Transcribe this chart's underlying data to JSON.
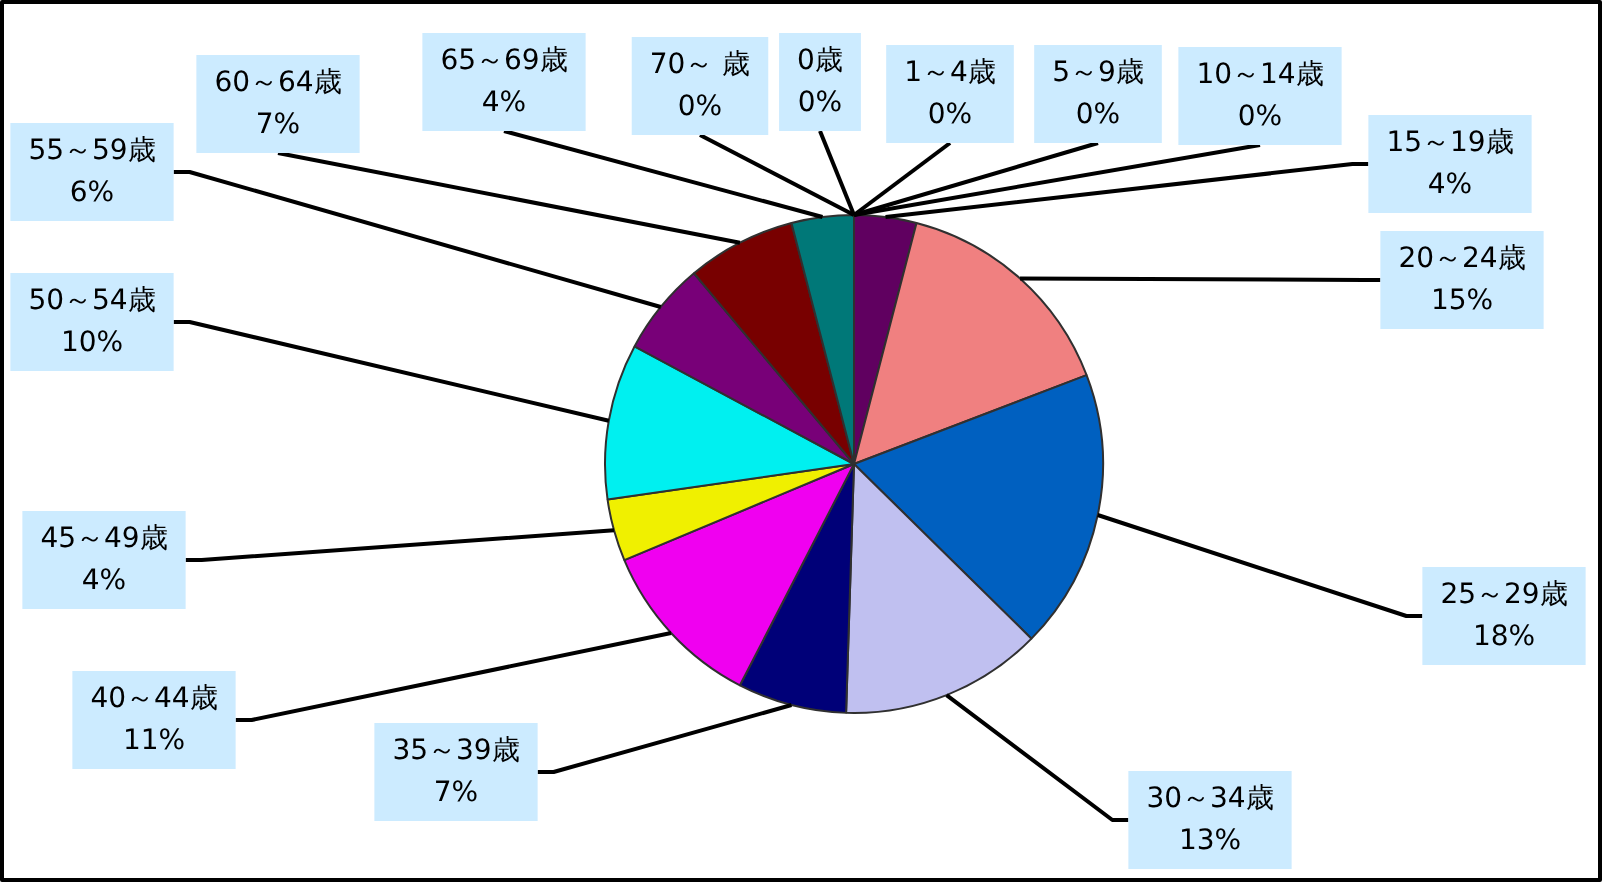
{
  "chart_data": {
    "type": "pie",
    "categories": [
      "0歳",
      "1～4歳",
      "5～9歳",
      "10～14歳",
      "15～19歳",
      "20～24歳",
      "25～29歳",
      "30～34歳",
      "35～39歳",
      "40～44歳",
      "45～49歳",
      "50～54歳",
      "55～59歳",
      "60～64歳",
      "65～69歳",
      "70～ 歳"
    ],
    "values": [
      0,
      0,
      0,
      0,
      4,
      15,
      18,
      13,
      7,
      11,
      4,
      10,
      6,
      7,
      4,
      0
    ],
    "value_labels": [
      "0%",
      "0%",
      "0%",
      "0%",
      "4%",
      "15%",
      "18%",
      "13%",
      "7%",
      "11%",
      "4%",
      "10%",
      "6%",
      "7%",
      "4%",
      "0%"
    ],
    "colors": [
      "#9999ff",
      "#993366",
      "#ffffcc",
      "#ccffff",
      "#600060",
      "#f08080",
      "#0060c0",
      "#c0c0f0",
      "#000078",
      "#f000f0",
      "#f0f000",
      "#00f0f0",
      "#780078",
      "#780000",
      "#007878",
      "#0000ff"
    ],
    "legend": false
  }
}
